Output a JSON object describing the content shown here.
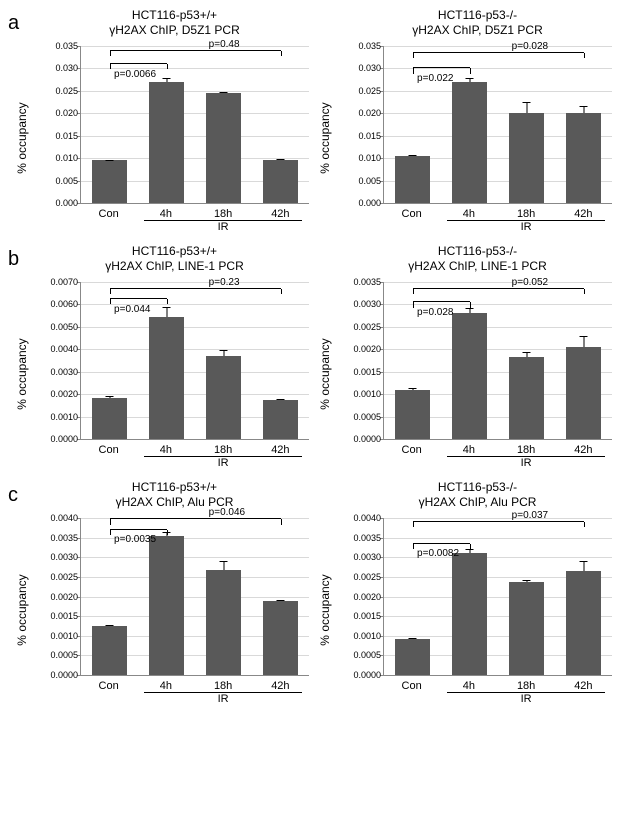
{
  "panels": [
    {
      "label": "a",
      "charts": [
        {
          "title1": "HCT116-p53+/+",
          "title2": "γH2AX ChIP, D5Z1 PCR",
          "ylabel": "% occupancy",
          "ymax": 0.035,
          "ytick_step": 0.005,
          "decimals": 3,
          "categories": [
            "Con",
            "4h",
            "18h",
            "42h"
          ],
          "values": [
            0.0095,
            0.027,
            0.0245,
            0.0095
          ],
          "errors": [
            0.0005,
            0.0012,
            0.0005,
            0.001
          ],
          "p1": {
            "text": "p=0.0066",
            "from": 0,
            "to": 1,
            "y": 0.031
          },
          "p2": {
            "text": "p=0.48",
            "from": 0,
            "to": 3,
            "y": 0.034
          },
          "ir_from": 1,
          "ir_to": 3
        },
        {
          "title1": "HCT116-p53-/-",
          "title2": "γH2AX ChIP, D5Z1 PCR",
          "ylabel": "% occupancy",
          "ymax": 0.035,
          "ytick_step": 0.005,
          "decimals": 3,
          "categories": [
            "Con",
            "4h",
            "18h",
            "42h"
          ],
          "values": [
            0.0105,
            0.027,
            0.02,
            0.02
          ],
          "errors": [
            0.0008,
            0.001,
            0.0045,
            0.0028
          ],
          "p1": {
            "text": "p=0.022",
            "from": 0,
            "to": 1,
            "y": 0.03
          },
          "p2": {
            "text": "p=0.028",
            "from": 0,
            "to": 3,
            "y": 0.0335
          },
          "ir_from": 1,
          "ir_to": 3
        }
      ]
    },
    {
      "label": "b",
      "charts": [
        {
          "title1": "HCT116-p53+/+",
          "title2": "γH2AX ChIP, LINE-1 PCR",
          "ylabel": "% occupancy",
          "ymax": 0.007,
          "ytick_step": 0.001,
          "decimals": 4,
          "categories": [
            "Con",
            "4h",
            "18h",
            "42h"
          ],
          "values": [
            0.00185,
            0.00545,
            0.0037,
            0.00175
          ],
          "errors": [
            0.00025,
            0.00055,
            0.00055,
            0.00015
          ],
          "p1": {
            "text": "p=0.044",
            "from": 0,
            "to": 1,
            "y": 0.00625
          },
          "p2": {
            "text": "p=0.23",
            "from": 0,
            "to": 3,
            "y": 0.0067
          },
          "ir_from": 1,
          "ir_to": 3
        },
        {
          "title1": "HCT116-p53-/-",
          "title2": "γH2AX ChIP, LINE-1 PCR",
          "ylabel": "% occupancy",
          "ymax": 0.0035,
          "ytick_step": 0.0005,
          "decimals": 4,
          "categories": [
            "Con",
            "4h",
            "18h",
            "42h"
          ],
          "values": [
            0.0011,
            0.0028,
            0.00183,
            0.00205
          ],
          "errors": [
            0.00015,
            0.00015,
            0.0002,
            0.00042
          ],
          "p1": {
            "text": "p=0.028",
            "from": 0,
            "to": 1,
            "y": 0.00305
          },
          "p2": {
            "text": "p=0.052",
            "from": 0,
            "to": 3,
            "y": 0.00335
          },
          "ir_from": 1,
          "ir_to": 3
        }
      ]
    },
    {
      "label": "c",
      "charts": [
        {
          "title1": "HCT116-p53+/+",
          "title2": "γH2AX ChIP, Alu PCR",
          "ylabel": "% occupancy",
          "ymax": 0.004,
          "ytick_step": 0.0005,
          "decimals": 4,
          "categories": [
            "Con",
            "4h",
            "18h",
            "42h"
          ],
          "values": [
            0.00125,
            0.00355,
            0.00268,
            0.00188
          ],
          "errors": [
            5e-05,
            0.0001,
            0.00033,
            7e-05
          ],
          "p1": {
            "text": "p=0.0035",
            "from": 0,
            "to": 1,
            "y": 0.0037
          },
          "p2": {
            "text": "p=0.046",
            "from": 0,
            "to": 3,
            "y": 0.00397
          },
          "ir_from": 1,
          "ir_to": 3
        },
        {
          "title1": "HCT116-p53-/-",
          "title2": "γH2AX ChIP, Alu PCR",
          "ylabel": "% occupancy",
          "ymax": 0.004,
          "ytick_step": 0.0005,
          "decimals": 4,
          "categories": [
            "Con",
            "4h",
            "18h",
            "42h"
          ],
          "values": [
            0.00093,
            0.0031,
            0.00238,
            0.00265
          ],
          "errors": [
            8e-05,
            0.00013,
            8e-05,
            0.00038
          ],
          "p1": {
            "text": "p=0.0082",
            "from": 0,
            "to": 1,
            "y": 0.00335
          },
          "p2": {
            "text": "p=0.037",
            "from": 0,
            "to": 3,
            "y": 0.0039
          },
          "ir_from": 1,
          "ir_to": 3
        }
      ]
    }
  ],
  "style": {
    "bar_color": "#595959",
    "grid_color": "#d9d9d9",
    "axis_color": "#888888",
    "background": "#ffffff",
    "title_fontsize": 12,
    "tick_fontsize": 9,
    "xlabel_fontsize": 11,
    "plabel_fontsize": 10
  },
  "ir_label": "IR"
}
